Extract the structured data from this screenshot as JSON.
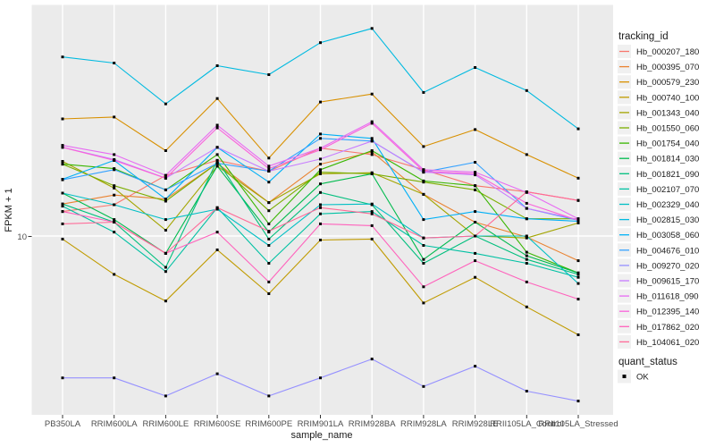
{
  "chart_data": {
    "type": "line",
    "title": "",
    "xlabel": "sample_name",
    "ylabel": "FPKM + 1",
    "y_scale": "log10",
    "ylim": [
      1.74,
      97
    ],
    "y_tick_labels": [
      "10"
    ],
    "grid": "major-white-on-grey-panel",
    "panel_bg": "#EBEBEB",
    "grid_color": "#FFFFFF",
    "point_color": "#000000",
    "point_shape": "square",
    "legend_position": "right",
    "legend_title": "tracking_id",
    "quant_legend": {
      "title": "quant_status",
      "items": [
        {
          "label": "OK",
          "marker": "black-square"
        }
      ]
    },
    "x_categories": [
      "PB350LA",
      "RRIM600LA",
      "RRIM600LE",
      "RRIM600SE",
      "RRIM600PE",
      "RRIM901LA",
      "RRIM928BA",
      "RRIM928LA",
      "RRIM928LE",
      "RRII105LA_Control",
      "RRII105LA_Stressed"
    ],
    "series": [
      {
        "name": "Hb_000207_180",
        "color": "#F8766D",
        "values": [
          12.8,
          13.7,
          18.4,
          21.4,
          19.2,
          24.2,
          22.7,
          19.5,
          16.6,
          15.6,
          14.3
        ]
      },
      {
        "name": "Hb_000395_070",
        "color": "#EA8331",
        "values": [
          13.8,
          15.1,
          14.5,
          20.8,
          14.0,
          20.6,
          23.3,
          15.2,
          11.5,
          9.9,
          7.8
        ]
      },
      {
        "name": "Hb_000579_230",
        "color": "#D89000",
        "values": [
          32.5,
          33.1,
          23.6,
          39.9,
          21.9,
          38.5,
          41.7,
          24.6,
          29.2,
          22.7,
          17.9
        ]
      },
      {
        "name": "Hb_000740_100",
        "color": "#C09B00",
        "values": [
          9.7,
          6.8,
          5.2,
          8.7,
          5.6,
          9.6,
          9.7,
          5.1,
          6.6,
          4.9,
          3.7
        ]
      },
      {
        "name": "Hb_001343_040",
        "color": "#A3A500",
        "values": [
          21.2,
          16.2,
          10.6,
          20.2,
          14.0,
          18.7,
          18.9,
          15.2,
          10.0,
          9.8,
          11.4
        ]
      },
      {
        "name": "Hb_001550_060",
        "color": "#7CAE00",
        "values": [
          20.6,
          16.6,
          14.2,
          20.8,
          12.9,
          19.0,
          18.7,
          17.2,
          15.9,
          11.9,
          11.9
        ]
      },
      {
        "name": "Hb_001754_040",
        "color": "#39B600",
        "values": [
          20.6,
          19.7,
          15.9,
          22.7,
          11.3,
          19.5,
          23.6,
          17.4,
          16.6,
          8.5,
          6.9
        ]
      },
      {
        "name": "Hb_001814_030",
        "color": "#00BB4E",
        "values": [
          15.4,
          11.8,
          8.4,
          20.2,
          10.4,
          16.9,
          18.7,
          7.9,
          11.5,
          8.2,
          6.9
        ]
      },
      {
        "name": "Hb_001821_090",
        "color": "#00BF7D",
        "values": [
          13.8,
          11.5,
          7.3,
          21.4,
          9.7,
          15.5,
          13.7,
          7.6,
          10.0,
          7.9,
          6.8
        ]
      },
      {
        "name": "Hb_002107_070",
        "color": "#00C1A3",
        "values": [
          13.5,
          10.4,
          7.0,
          13.3,
          7.6,
          12.5,
          12.8,
          9.1,
          8.4,
          7.6,
          6.6
        ]
      },
      {
        "name": "Hb_002329_040",
        "color": "#00BFC4",
        "values": [
          15.4,
          13.7,
          11.8,
          13.1,
          9.1,
          13.7,
          13.8,
          9.8,
          10.0,
          10.0,
          6.2
        ]
      },
      {
        "name": "Hb_002815_030",
        "color": "#00BAE0",
        "values": [
          60.6,
          57.0,
          37.8,
          55.5,
          50.7,
          70.0,
          80.7,
          42.4,
          54.5,
          43.2,
          29.4
        ]
      },
      {
        "name": "Hb_003058_060",
        "color": "#00B0F6",
        "values": [
          17.7,
          21.4,
          14.5,
          24.4,
          17.2,
          27.9,
          26.7,
          11.8,
          12.8,
          11.9,
          11.6
        ]
      },
      {
        "name": "Hb_004676_010",
        "color": "#35A2FF",
        "values": [
          17.6,
          19.5,
          15.9,
          20.8,
          19.2,
          26.7,
          26.0,
          19.0,
          21.0,
          13.2,
          11.7
        ]
      },
      {
        "name": "Hb_009270_020",
        "color": "#9590FF",
        "values": [
          2.4,
          2.4,
          2.0,
          2.5,
          2.0,
          2.4,
          2.9,
          2.2,
          2.7,
          2.1,
          1.9
        ]
      },
      {
        "name": "Hb_009615_170",
        "color": "#C77CFF",
        "values": [
          24.4,
          21.6,
          17.9,
          24.4,
          19.2,
          21.7,
          26.0,
          19.0,
          18.5,
          13.2,
          11.8
        ]
      },
      {
        "name": "Hb_011618_090",
        "color": "#E76BF3",
        "values": [
          24.9,
          22.7,
          18.4,
          30.5,
          20.2,
          24.2,
          31.6,
          19.5,
          19.0,
          15.5,
          11.9
        ]
      },
      {
        "name": "Hb_012395_140",
        "color": "#FA62DB",
        "values": [
          24.4,
          21.4,
          17.9,
          29.7,
          19.7,
          23.8,
          31.1,
          19.2,
          18.7,
          13.9,
          11.7
        ]
      },
      {
        "name": "Hb_017862_020",
        "color": "#FF62BC",
        "values": [
          12.8,
          11.5,
          8.4,
          10.4,
          6.3,
          11.3,
          11.1,
          6.0,
          7.8,
          6.3,
          5.3
        ]
      },
      {
        "name": "Hb_104061_020",
        "color": "#FF6A98",
        "values": [
          11.3,
          11.5,
          8.4,
          13.3,
          10.5,
          13.3,
          12.5,
          9.8,
          10.0,
          15.6,
          14.3
        ]
      }
    ]
  }
}
